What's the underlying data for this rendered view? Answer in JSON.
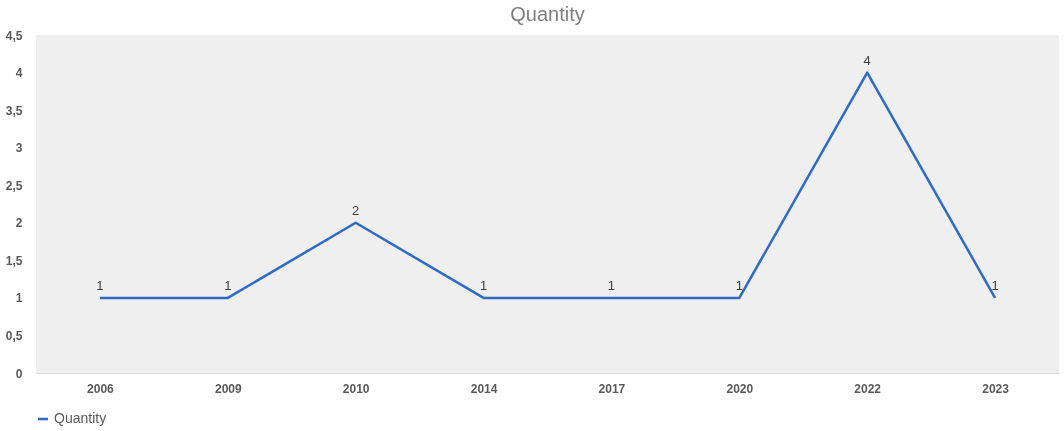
{
  "chart_data": {
    "type": "line",
    "title": "Quantity",
    "categories": [
      "2006",
      "2009",
      "2010",
      "2014",
      "2017",
      "2020",
      "2022",
      "2023"
    ],
    "series": [
      {
        "name": "Quantity",
        "color": "#2e6bc6",
        "values": [
          1,
          1,
          2,
          1,
          1,
          1,
          4,
          1
        ]
      }
    ],
    "ylim": [
      0,
      4.5
    ],
    "yticks": [
      0,
      {
        "value": 0.5,
        "label": "0,5"
      },
      1,
      {
        "value": 1.5,
        "label": "1,5"
      },
      2,
      {
        "value": 2.5,
        "label": "2,5"
      },
      3,
      {
        "value": 3.5,
        "label": "3,5"
      },
      4,
      {
        "value": 4.5,
        "label": "4,5"
      }
    ],
    "data_labels": true,
    "legend": "bottom",
    "grid": false,
    "marker": "none",
    "line_style": "solid"
  }
}
